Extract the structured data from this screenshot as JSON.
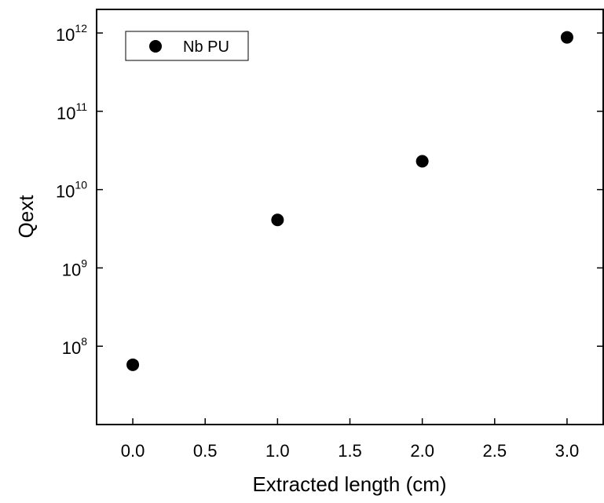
{
  "chart_data": {
    "type": "scatter",
    "x_axis": {
      "label": "Extracted length (cm)",
      "range": [
        -0.25,
        3.25
      ],
      "ticks": [
        0.0,
        0.5,
        1.0,
        1.5,
        2.0,
        2.5,
        3.0
      ],
      "tick_labels": [
        "0.0",
        "0.5",
        "1.0",
        "1.5",
        "2.0",
        "2.5",
        "3.0"
      ]
    },
    "y_axis": {
      "label": "Qext",
      "scale": "log",
      "range": [
        10000000,
        2000000000000
      ],
      "ticks": [
        100000000,
        1000000000,
        10000000000,
        100000000000,
        1000000000000
      ],
      "tick_labels": [
        {
          "base": "10",
          "exp": "8"
        },
        {
          "base": "10",
          "exp": "9"
        },
        {
          "base": "10",
          "exp": "10"
        },
        {
          "base": "10",
          "exp": "11"
        },
        {
          "base": "10",
          "exp": "12"
        }
      ]
    },
    "series": [
      {
        "name": "Nb PU",
        "marker": "filled-circle",
        "color": "#000000",
        "points": [
          {
            "x": 0.0,
            "y": 58000000
          },
          {
            "x": 1.0,
            "y": 4100000000
          },
          {
            "x": 2.0,
            "y": 23000000000
          },
          {
            "x": 3.0,
            "y": 880000000000
          }
        ]
      }
    ],
    "legend": {
      "position": "top-left"
    },
    "grid": false
  }
}
